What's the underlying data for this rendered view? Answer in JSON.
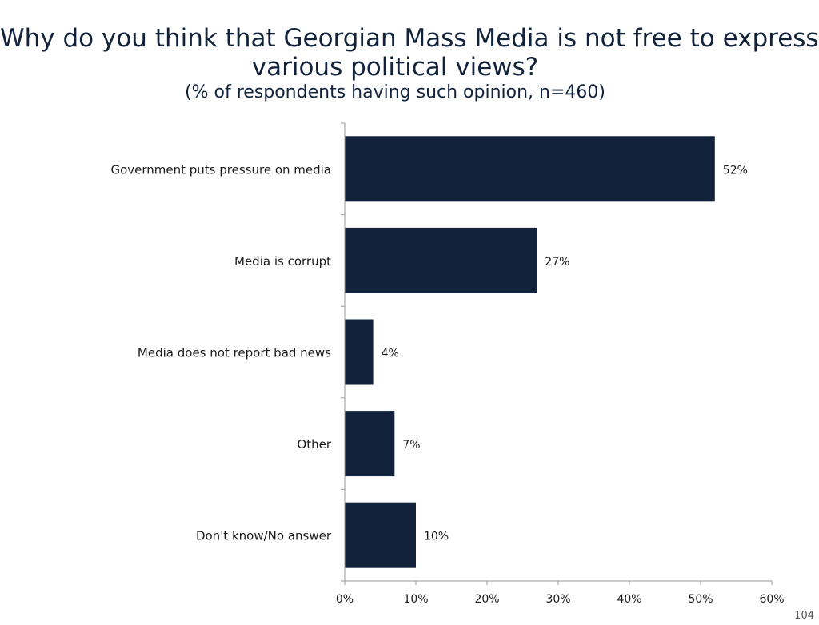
{
  "header": {
    "title_line1": "Why do you think that Georgian Mass Media is not free to express",
    "title_line2": "various political views?",
    "subtitle": "(% of respondents having such opinion, n=460)"
  },
  "chart_data": {
    "type": "bar",
    "orientation": "horizontal",
    "categories": [
      "Government puts pressure on media",
      "Media is corrupt",
      "Media does not report bad news",
      "Other",
      "Don't know/No answer"
    ],
    "values": [
      52,
      27,
      4,
      7,
      10
    ],
    "data_labels": [
      "52%",
      "27%",
      "4%",
      "7%",
      "10%"
    ],
    "xlim": [
      0,
      60
    ],
    "xticks": [
      0,
      10,
      20,
      30,
      40,
      50,
      60
    ],
    "xtick_labels": [
      "0%",
      "10%",
      "20%",
      "30%",
      "40%",
      "50%",
      "60%"
    ],
    "xlabel": "",
    "ylabel": "",
    "grid": false,
    "bar_color": "#11223a"
  },
  "footer": {
    "page_number": "104"
  }
}
